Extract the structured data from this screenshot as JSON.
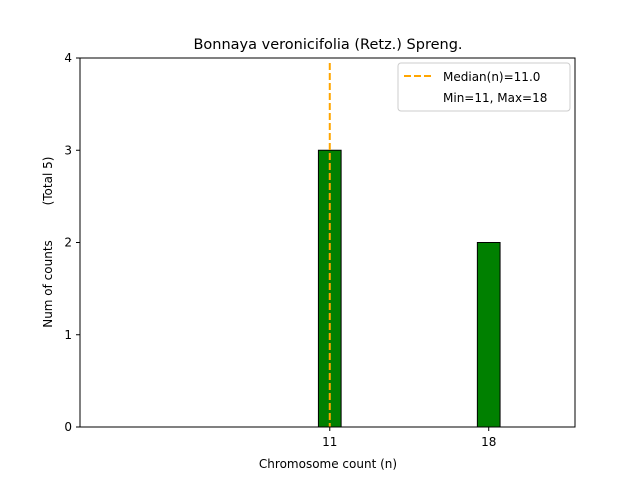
{
  "chart_data": {
    "type": "bar",
    "title": "Bonnaya veronicifolia (Retz.) Spreng.",
    "xlabel": "Chromosome count (n)",
    "ylabel": "Num of counts",
    "ylabel_note": "(Total 5)",
    "x": [
      11,
      18
    ],
    "values": [
      3,
      2
    ],
    "xlim": [
      0,
      21.8
    ],
    "ylim": [
      0,
      4
    ],
    "xticks": [
      11,
      18
    ],
    "yticks": [
      0,
      1,
      2,
      3,
      4
    ],
    "bar_width": 1,
    "bar_color": "#008000",
    "bar_edge_color": "#000000",
    "median": 11.0,
    "median_color": "#ffa500",
    "legend": {
      "placement": "top-right",
      "entries": [
        "Median(n)=11.0",
        "Min=11, Max=18"
      ]
    },
    "grid": false
  }
}
